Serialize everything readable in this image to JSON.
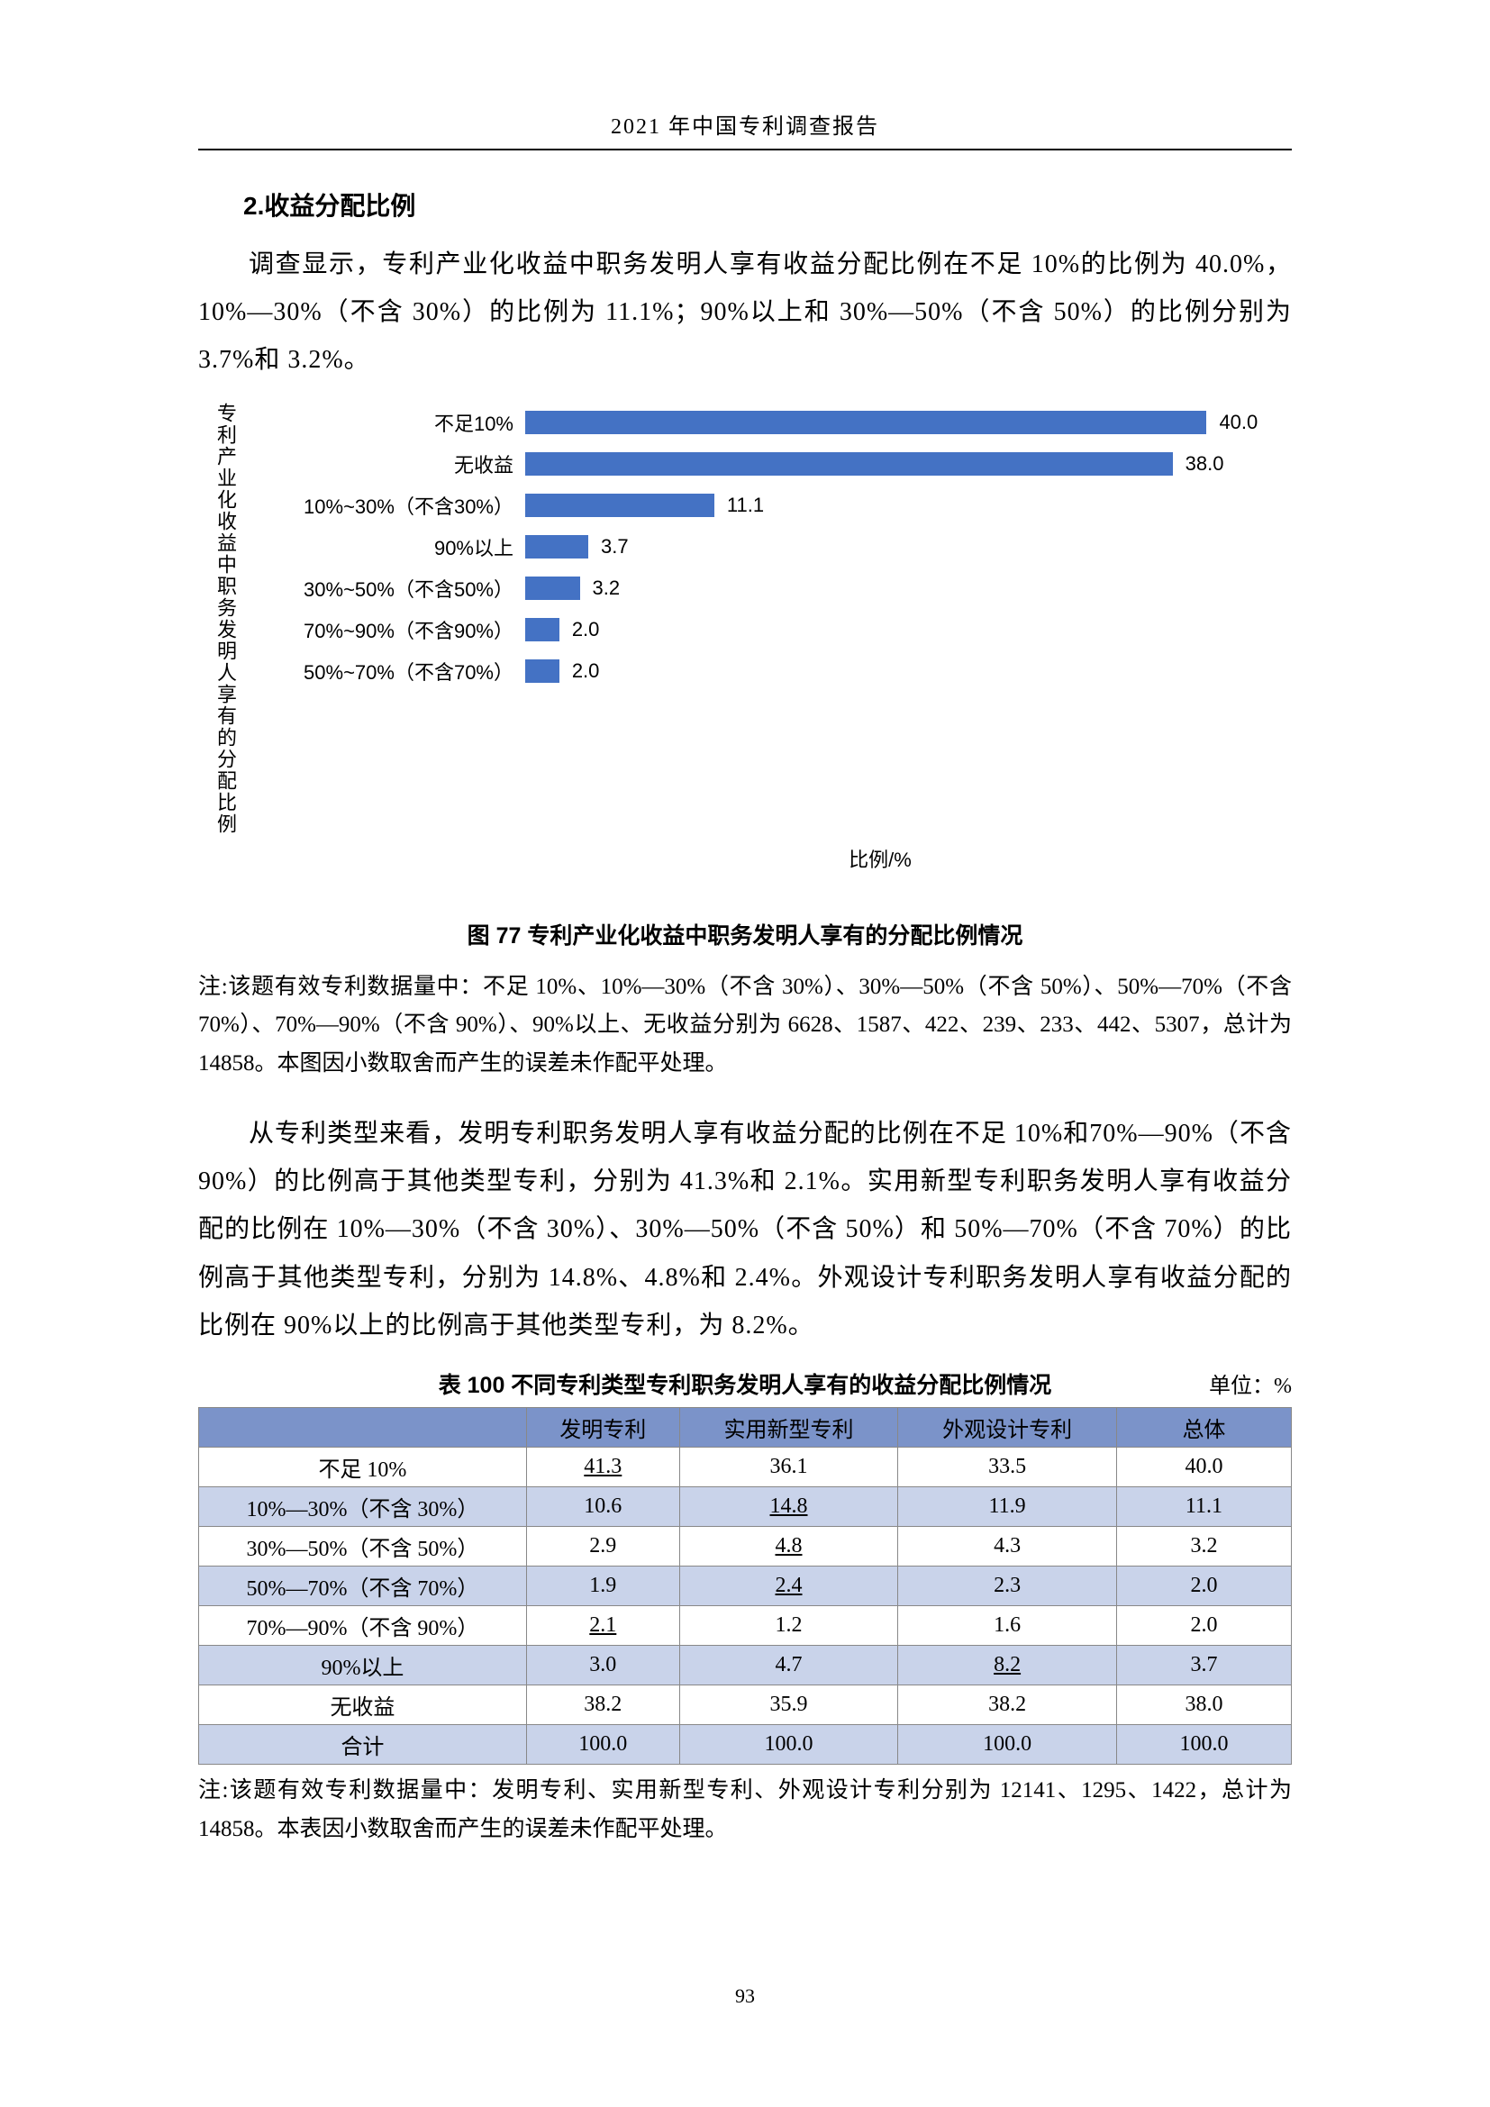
{
  "header": {
    "title": "2021 年中国专利调查报告"
  },
  "section": {
    "heading": "2.收益分配比例"
  },
  "p1": "调查显示，专利产业化收益中职务发明人享有收益分配比例在不足 10%的比例为 40.0%，10%—30%（不含 30%）的比例为 11.1%；90%以上和 30%—50%（不含 50%）的比例分别为 3.7%和 3.2%。",
  "chart": {
    "type": "bar-horizontal",
    "y_label": "专利产业化收益中职务发明人享有的分配比例",
    "x_label": "比例/%",
    "bar_color": "#4472c4",
    "label_fontsize": 22,
    "value_fontsize": 22,
    "xmax": 45,
    "bars": [
      {
        "cat": "不足10%",
        "val": 40.0,
        "val_text": "40.0"
      },
      {
        "cat": "无收益",
        "val": 38.0,
        "val_text": "38.0"
      },
      {
        "cat": "10%~30%（不含30%）",
        "val": 11.1,
        "val_text": "11.1"
      },
      {
        "cat": "90%以上",
        "val": 3.7,
        "val_text": "3.7"
      },
      {
        "cat": "30%~50%（不含50%）",
        "val": 3.2,
        "val_text": "3.2"
      },
      {
        "cat": "70%~90%（不含90%）",
        "val": 2.0,
        "val_text": "2.0"
      },
      {
        "cat": "50%~70%（不含70%）",
        "val": 2.0,
        "val_text": "2.0"
      }
    ]
  },
  "figure_caption": "图 77  专利产业化收益中职务发明人享有的分配比例情况",
  "note1": "注:该题有效专利数据量中：不足 10%、10%—30%（不含 30%）、30%—50%（不含 50%）、50%—70%（不含 70%）、70%—90%（不含 90%）、90%以上、无收益分别为 6628、1587、422、239、233、442、5307，总计为 14858。本图因小数取舍而产生的误差未作配平处理。",
  "p2": "从专利类型来看，发明专利职务发明人享有收益分配的比例在不足 10%和70%—90%（不含 90%）的比例高于其他类型专利，分别为 41.3%和 2.1%。实用新型专利职务发明人享有收益分配的比例在 10%—30%（不含 30%）、30%—50%（不含 50%）和 50%—70%（不含 70%）的比例高于其他类型专利，分别为 14.8%、4.8%和 2.4%。外观设计专利职务发明人享有收益分配的比例在 90%以上的比例高于其他类型专利，为 8.2%。",
  "table": {
    "title": "表 100  不同专利类型专利职务发明人享有的收益分配比例情况",
    "unit": "单位：%",
    "header_bg": "#7b93c9",
    "row_alt_bg": "#c9d3ea",
    "border_color": "#888888",
    "columns": [
      "",
      "发明专利",
      "实用新型专利",
      "外观设计专利",
      "总体"
    ],
    "col_widths": [
      "30%",
      "14%",
      "20%",
      "20%",
      "16%"
    ],
    "rows": [
      {
        "label": "不足 10%",
        "cells": [
          "41.3",
          "36.1",
          "33.5",
          "40.0"
        ],
        "hl": [
          true,
          false,
          false,
          false
        ],
        "alt": false
      },
      {
        "label": "10%—30%（不含 30%）",
        "cells": [
          "10.6",
          "14.8",
          "11.9",
          "11.1"
        ],
        "hl": [
          false,
          true,
          false,
          false
        ],
        "alt": true
      },
      {
        "label": "30%—50%（不含 50%）",
        "cells": [
          "2.9",
          "4.8",
          "4.3",
          "3.2"
        ],
        "hl": [
          false,
          true,
          false,
          false
        ],
        "alt": false
      },
      {
        "label": "50%—70%（不含 70%）",
        "cells": [
          "1.9",
          "2.4",
          "2.3",
          "2.0"
        ],
        "hl": [
          false,
          true,
          false,
          false
        ],
        "alt": true
      },
      {
        "label": "70%—90%（不含 90%）",
        "cells": [
          "2.1",
          "1.2",
          "1.6",
          "2.0"
        ],
        "hl": [
          true,
          false,
          false,
          false
        ],
        "alt": false
      },
      {
        "label": "90%以上",
        "cells": [
          "3.0",
          "4.7",
          "8.2",
          "3.7"
        ],
        "hl": [
          false,
          false,
          true,
          false
        ],
        "alt": true
      },
      {
        "label": "无收益",
        "cells": [
          "38.2",
          "35.9",
          "38.2",
          "38.0"
        ],
        "hl": [
          false,
          false,
          false,
          false
        ],
        "alt": false
      },
      {
        "label": "合计",
        "cells": [
          "100.0",
          "100.0",
          "100.0",
          "100.0"
        ],
        "hl": [
          false,
          false,
          false,
          false
        ],
        "alt": true
      }
    ]
  },
  "note2": "注:该题有效专利数据量中：发明专利、实用新型专利、外观设计专利分别为 12141、1295、1422，总计为 14858。本表因小数取舍而产生的误差未作配平处理。",
  "page_number": "93"
}
